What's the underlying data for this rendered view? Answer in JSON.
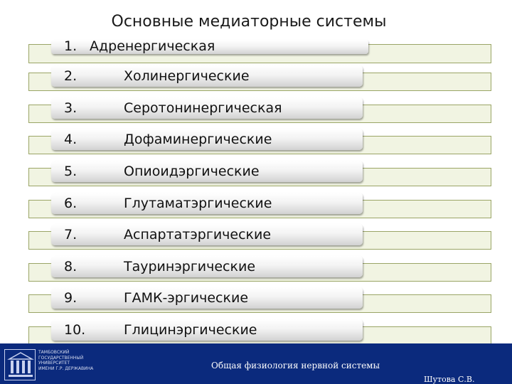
{
  "title": "Основные медиаторные системы",
  "items": [
    {
      "num": "1.",
      "label": "Адренергическая"
    },
    {
      "num": "2.",
      "label": "Холинергические"
    },
    {
      "num": "3.",
      "label": "Серотонинергическая"
    },
    {
      "num": "4.",
      "label": "Дофаминергические"
    },
    {
      "num": "5.",
      "label": "Опиоидэргические"
    },
    {
      "num": "6.",
      "label": "Глутаматэргические"
    },
    {
      "num": "7.",
      "label": "Аспартатэргические"
    },
    {
      "num": "8.",
      "label": "Тауринэргические"
    },
    {
      "num": "9.",
      "label": "ГАМК-эргические"
    },
    {
      "num": "10.",
      "label": "Глицинэргические"
    }
  ],
  "footer": {
    "university_lines": [
      "Тамбовский",
      "государственный",
      "университет",
      "имени Г.Р. Державина"
    ],
    "course": "Общая физиология нервной системы",
    "author": "Шутова С.В."
  },
  "colors": {
    "footer_bg": "#0b2a7d",
    "stripe_bg": "#f1f4e2",
    "stripe_border": "#9aa566"
  },
  "icons": {
    "logo": "university-building-icon"
  }
}
